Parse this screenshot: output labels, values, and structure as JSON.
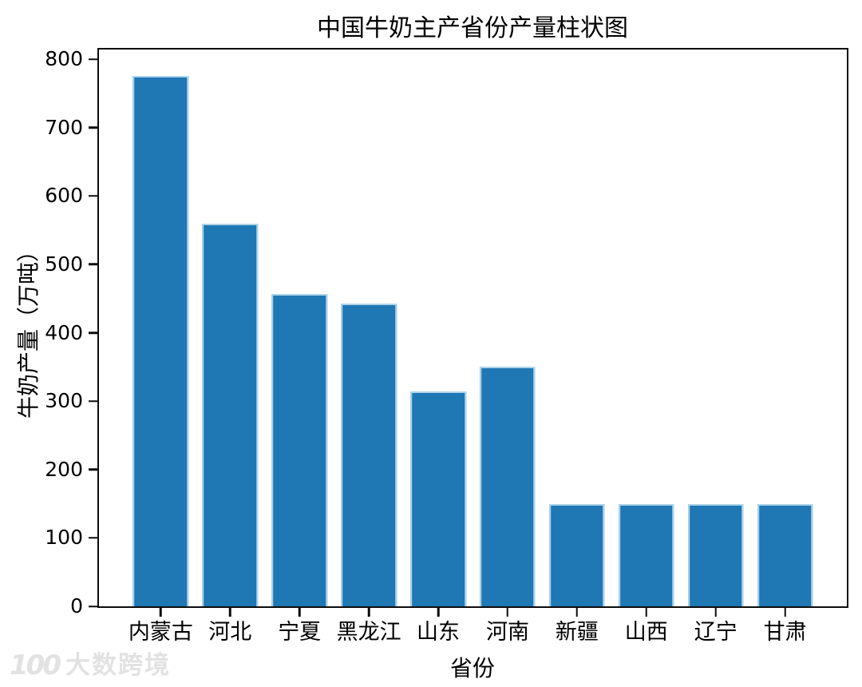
{
  "title": "中国牛奶主产省份产量柱状图",
  "watermark": {
    "logo": "100",
    "text": "大数跨境",
    "color": "#e2e2e2"
  },
  "chart_data": {
    "type": "bar",
    "title": "中国牛奶主产省份产量柱状图",
    "categories": [
      "内蒙古",
      "河北",
      "宁夏",
      "黑龙江",
      "山东",
      "河南",
      "新疆",
      "山西",
      "辽宁",
      "甘肃"
    ],
    "values": [
      775,
      560,
      457,
      443,
      314,
      350,
      150,
      150,
      150,
      150
    ],
    "xlabel": "省份",
    "ylabel": "牛奶产量（万吨）",
    "ylim": [
      0,
      814
    ],
    "yticks": [
      0,
      100,
      200,
      300,
      400,
      500,
      600,
      700,
      800
    ],
    "bar_color": "#1f77b4",
    "bar_edge_color": "#aed4ea",
    "axis_color": "#0d0d0d",
    "grid": false,
    "legend": null
  }
}
